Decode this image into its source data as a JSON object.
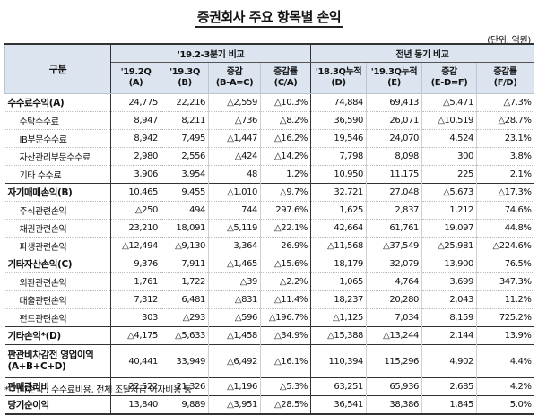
{
  "title": "증권회사 주요 항목별 손익",
  "unit": "(단위: 억원)",
  "header": {
    "gubun": "구분",
    "group1": "'19.2-3분기 비교",
    "group2": "전년 동기 비교",
    "cols": [
      [
        "'19.2Q",
        "(A)"
      ],
      [
        "'19.3Q",
        "(B)"
      ],
      [
        "증감",
        "(B-A=C)"
      ],
      [
        "증감률",
        "(C/A)"
      ],
      [
        "'18.3Q누적",
        "(D)"
      ],
      [
        "'19.3Q누적",
        "(E)"
      ],
      [
        "증감",
        "(E-D=F)"
      ],
      [
        "증감률",
        "(F/D)"
      ]
    ]
  },
  "rows": [
    {
      "label": "수수료수익(A)",
      "type": "main",
      "values": [
        "24,775",
        "22,216",
        "△2,559",
        "△10.3%",
        "74,884",
        "69,413",
        "△5,471",
        "△7.3%"
      ]
    },
    {
      "label": "수탁수수료",
      "type": "sub",
      "values": [
        "8,947",
        "8,211",
        "△736",
        "△8.2%",
        "36,590",
        "26,071",
        "△10,519",
        "△28.7%"
      ]
    },
    {
      "label": "IB부문수수료",
      "type": "sub",
      "values": [
        "8,942",
        "7,495",
        "△1,447",
        "△16.2%",
        "19,546",
        "24,070",
        "4,524",
        "23.1%"
      ]
    },
    {
      "label": "자산관리부문수수료",
      "type": "sub",
      "values": [
        "2,980",
        "2,556",
        "△424",
        "△14.2%",
        "7,798",
        "8,098",
        "300",
        "3.8%"
      ]
    },
    {
      "label": "기타 수수료",
      "type": "sub",
      "values": [
        "3,906",
        "3,954",
        "48",
        "1.2%",
        "10,950",
        "11,175",
        "225",
        "2.1%"
      ]
    },
    {
      "label": "자기매매손익(B)",
      "type": "main",
      "values": [
        "10,465",
        "9,455",
        "△1,010",
        "△9.7%",
        "32,721",
        "27,048",
        "△5,673",
        "△17.3%"
      ]
    },
    {
      "label": "주식관련손익",
      "type": "sub",
      "values": [
        "△250",
        "494",
        "744",
        "297.6%",
        "1,625",
        "2,837",
        "1,212",
        "74.6%"
      ]
    },
    {
      "label": "채권관련손익",
      "type": "sub",
      "values": [
        "23,210",
        "18,091",
        "△5,119",
        "△22.1%",
        "42,664",
        "61,761",
        "19,097",
        "44.8%"
      ]
    },
    {
      "label": "파생관련손익",
      "type": "sub",
      "values": [
        "△12,494",
        "△9,130",
        "3,364",
        "26.9%",
        "△11,568",
        "△37,549",
        "△25,981",
        "△224.6%"
      ]
    },
    {
      "label": "기타자산손익(C)",
      "type": "main",
      "values": [
        "9,376",
        "7,911",
        "△1,465",
        "△15.6%",
        "18,179",
        "32,079",
        "13,900",
        "76.5%"
      ]
    },
    {
      "label": "외환관련손익",
      "type": "sub",
      "values": [
        "1,761",
        "1,722",
        "△39",
        "△2.2%",
        "1,065",
        "4,764",
        "3,699",
        "347.3%"
      ]
    },
    {
      "label": "대출관련손익",
      "type": "sub",
      "values": [
        "7,312",
        "6,481",
        "△831",
        "△11.4%",
        "18,237",
        "20,280",
        "2,043",
        "11.2%"
      ]
    },
    {
      "label": "펀드관련손익",
      "type": "sub",
      "values": [
        "303",
        "△293",
        "△596",
        "△196.7%",
        "△1,125",
        "7,034",
        "8,159",
        "725.2%"
      ]
    },
    {
      "label": "기타손익*(D)",
      "type": "main",
      "values": [
        "△4,175",
        "△5,633",
        "△1,458",
        "△34.9%",
        "△15,388",
        "△13,244",
        "2,144",
        "13.9%"
      ]
    },
    {
      "label": "판관비차감전 영업이익(A+B+C+D)",
      "type": "tall",
      "values": [
        "40,441",
        "33,949",
        "△6,492",
        "△16.1%",
        "110,394",
        "115,296",
        "4,902",
        "4.4%"
      ]
    },
    {
      "label": "판매관리비",
      "type": "main",
      "values": [
        "22,522",
        "21,326",
        "△1,196",
        "△5.3%",
        "63,251",
        "65,936",
        "2,685",
        "4.2%"
      ]
    },
    {
      "label": "당기순이익",
      "type": "main",
      "values": [
        "13,840",
        "9,889",
        "△3,951",
        "△28.5%",
        "36,541",
        "38,386",
        "1,845",
        "5.0%"
      ]
    }
  ],
  "footnote": "* 기타손익 : 수수료비용, 전체 조달자금 이자비용 등"
}
